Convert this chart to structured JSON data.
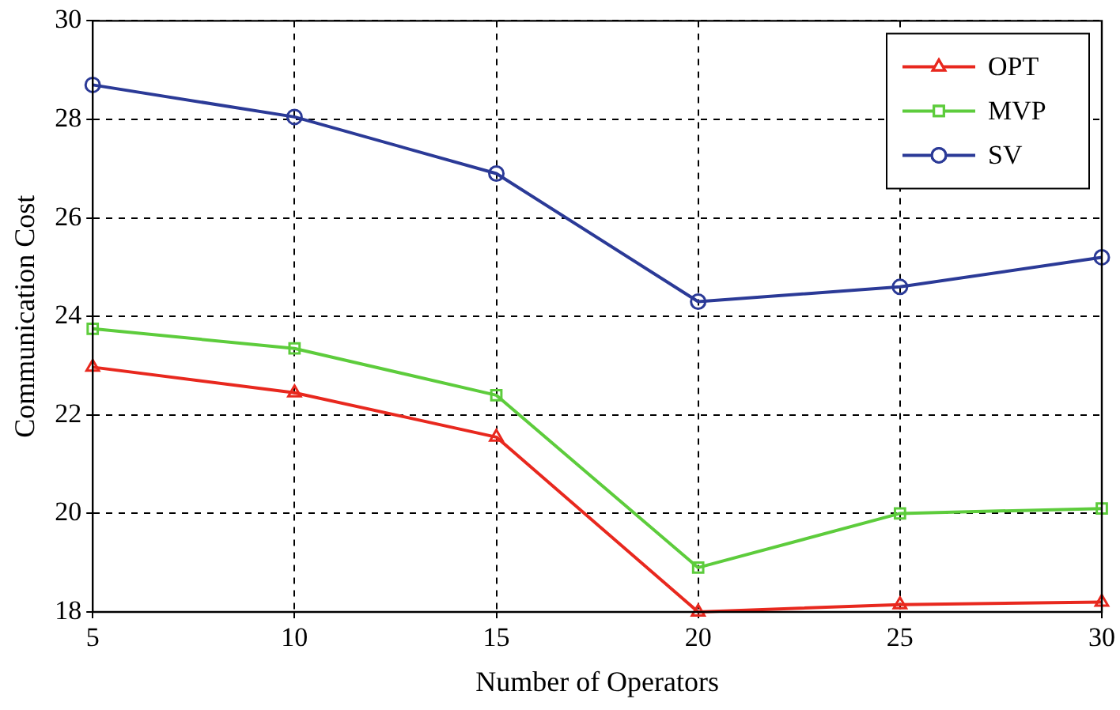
{
  "chart_data": {
    "type": "line",
    "xlabel": "Number of Operators",
    "ylabel": "Communication Cost",
    "x": [
      5,
      10,
      15,
      20,
      25,
      30
    ],
    "series": [
      {
        "name": "OPT",
        "color": "#e8281e",
        "marker": "triangle",
        "values": [
          22.97,
          22.45,
          21.55,
          18.0,
          18.15,
          18.2
        ]
      },
      {
        "name": "MVP",
        "color": "#5dcc3c",
        "marker": "square",
        "values": [
          23.75,
          23.35,
          22.4,
          18.9,
          20.0,
          20.1
        ]
      },
      {
        "name": "SV",
        "color": "#2b3a97",
        "marker": "circle",
        "values": [
          28.7,
          28.05,
          26.9,
          24.3,
          24.6,
          25.2
        ]
      }
    ],
    "xlim": [
      5,
      30
    ],
    "xticks": [
      5,
      10,
      15,
      20,
      25,
      30
    ],
    "ylim": [
      18,
      30
    ],
    "yticks": [
      18,
      20,
      22,
      24,
      26,
      28,
      30
    ],
    "grid": true,
    "legend": "top right",
    "line_style": "solid"
  }
}
